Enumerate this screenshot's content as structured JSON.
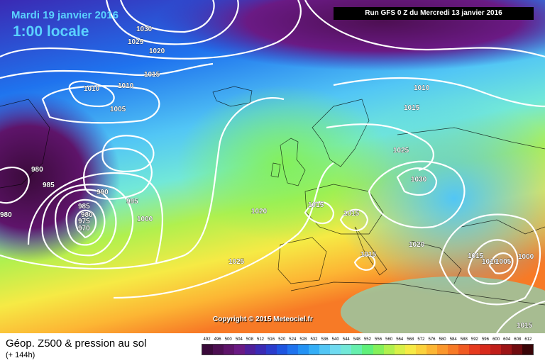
{
  "header": {
    "date": "Mardi 19 janvier 2016",
    "time": "1:00 locale",
    "run": "Run GFS 0 Z du Mercredi 13 janvier 2016"
  },
  "copyright": "Copyright © 2015 Meteociel.fr",
  "isobar_labels": [
    "1030",
    "1025",
    "1020",
    "1015",
    "1010",
    "1010",
    "1005",
    "980",
    "985",
    "990",
    "985",
    "980",
    "975",
    "970",
    "995",
    "1000",
    "1020",
    "1025",
    "1015",
    "1015",
    "1015",
    "1010",
    "1015",
    "1025",
    "1030",
    "1020",
    "1015",
    "1010",
    "1005",
    "1000",
    "1015",
    "980"
  ],
  "legend": {
    "title": "Géop. Z500 & pression au sol",
    "subtitle": "(+ 144h)",
    "scale": [
      "492",
      "496",
      "500",
      "504",
      "508",
      "512",
      "516",
      "520",
      "524",
      "528",
      "532",
      "536",
      "540",
      "544",
      "548",
      "552",
      "556",
      "560",
      "564",
      "568",
      "572",
      "576",
      "580",
      "584",
      "588",
      "592",
      "596",
      "600",
      "604",
      "608",
      "612"
    ],
    "colors": [
      "#3a0a3a",
      "#4d0f52",
      "#5e146a",
      "#6a1a84",
      "#4f1f9a",
      "#3a2ab4",
      "#2a3ccc",
      "#1e55e0",
      "#1f73ee",
      "#2392f4",
      "#34aef6",
      "#52c6f5",
      "#6fdaf0",
      "#72e8d8",
      "#66efae",
      "#5ff07a",
      "#84f05a",
      "#b0f04e",
      "#d8f048",
      "#f6ea45",
      "#fbd23c",
      "#fcb634",
      "#fb972c",
      "#f77a26",
      "#f05a22",
      "#e63a1e",
      "#d82a1c",
      "#c01e1a",
      "#9c1416",
      "#700c10",
      "#3a0508"
    ]
  }
}
